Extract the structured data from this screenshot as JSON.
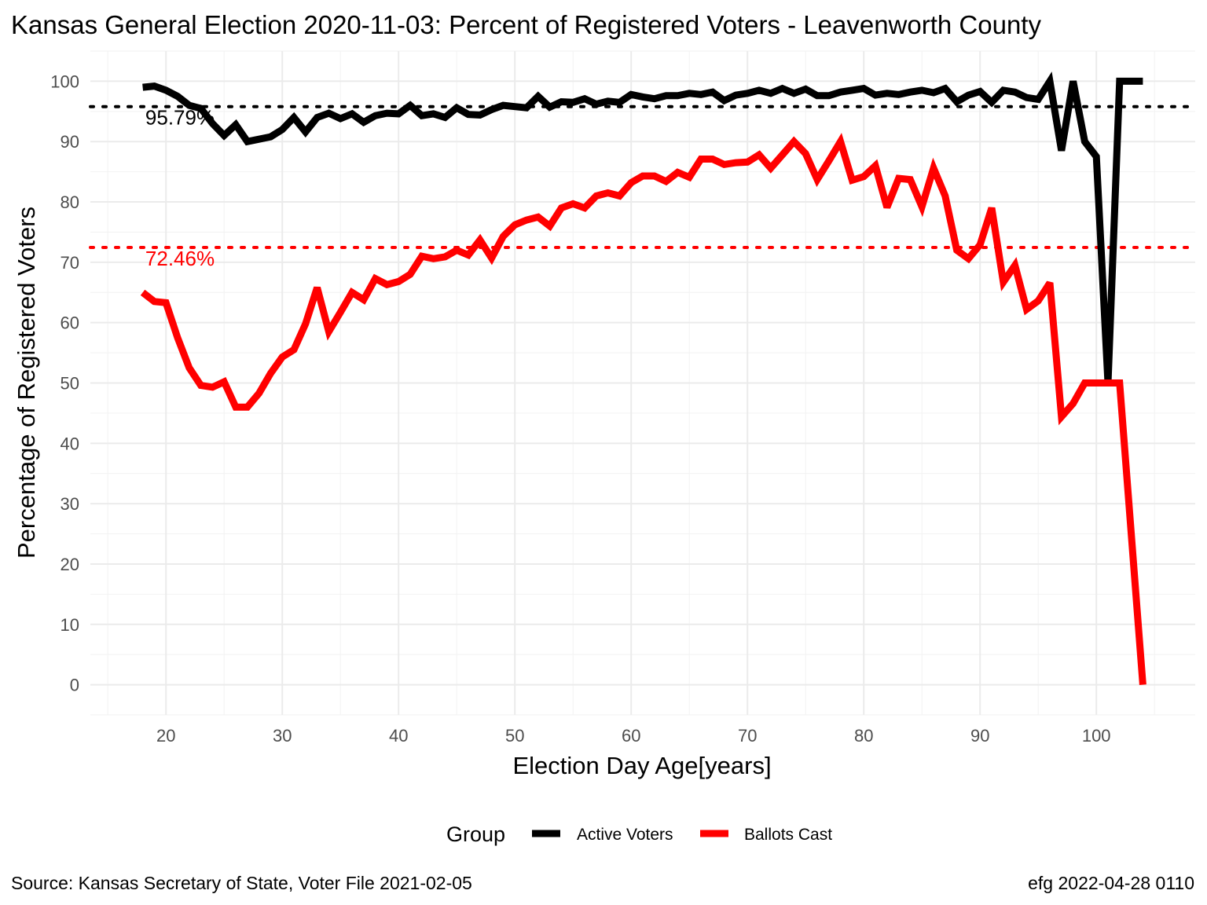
{
  "title": "Kansas General Election 2020-11-03:  Percent of Registered Voters - Leavenworth County",
  "caption_left": "Source:  Kansas Secretary of State, Voter File  2021-02-05",
  "caption_right": "efg 2022-04-28 0110",
  "chart_data": {
    "type": "line",
    "xlabel": "Election Day Age[years]",
    "ylabel": "Percentage of Registered Voters",
    "xlim": [
      13.5,
      108.5
    ],
    "ylim": [
      -5,
      105
    ],
    "x_ticks": [
      20,
      30,
      40,
      50,
      60,
      70,
      80,
      90,
      100
    ],
    "y_ticks": [
      0,
      10,
      20,
      30,
      40,
      50,
      60,
      70,
      80,
      90,
      100
    ],
    "grid": true,
    "legend": {
      "title": "Group",
      "position": "bottom",
      "entries": [
        {
          "label": "Active Voters",
          "color": "#000000"
        },
        {
          "label": "Ballots Cast",
          "color": "#ff0000"
        }
      ]
    },
    "reference_lines": [
      {
        "value": 95.79,
        "label": "95.79%",
        "color": "#000000",
        "style": "dotted"
      },
      {
        "value": 72.46,
        "label": "72.46%",
        "color": "#ff0000",
        "style": "dotted"
      }
    ],
    "x": [
      18,
      19,
      20,
      21,
      22,
      23,
      24,
      25,
      26,
      27,
      28,
      29,
      30,
      31,
      32,
      33,
      34,
      35,
      36,
      37,
      38,
      39,
      40,
      41,
      42,
      43,
      44,
      45,
      46,
      47,
      48,
      49,
      50,
      51,
      52,
      53,
      54,
      55,
      56,
      57,
      58,
      59,
      60,
      61,
      62,
      63,
      64,
      65,
      66,
      67,
      68,
      69,
      70,
      71,
      72,
      73,
      74,
      75,
      76,
      77,
      78,
      79,
      80,
      81,
      82,
      83,
      84,
      85,
      86,
      87,
      88,
      89,
      90,
      91,
      92,
      93,
      94,
      95,
      96,
      97,
      98,
      99,
      100,
      101,
      102,
      103,
      104
    ],
    "series": [
      {
        "name": "Active Voters",
        "color": "#000000",
        "values": [
          99.0,
          99.2,
          98.5,
          97.5,
          96.0,
          95.5,
          93.0,
          91.0,
          92.8,
          90.0,
          90.4,
          90.8,
          92.0,
          94.0,
          91.6,
          94.0,
          94.7,
          93.8,
          94.6,
          93.2,
          94.3,
          94.7,
          94.6,
          96.0,
          94.3,
          94.6,
          94.0,
          95.6,
          94.5,
          94.4,
          95.3,
          96.0,
          95.8,
          95.6,
          97.5,
          95.7,
          96.6,
          96.5,
          97.1,
          96.2,
          96.7,
          96.5,
          97.8,
          97.4,
          97.1,
          97.6,
          97.6,
          98.0,
          97.8,
          98.2,
          96.8,
          97.7,
          98.0,
          98.5,
          98.0,
          98.8,
          98.0,
          98.7,
          97.6,
          97.6,
          98.2,
          98.5,
          98.8,
          97.7,
          98.0,
          97.8,
          98.2,
          98.5,
          98.1,
          98.8,
          96.6,
          97.7,
          98.3,
          96.5,
          98.5,
          98.2,
          97.3,
          97.0,
          100.0,
          88.5,
          100.0,
          90.0,
          87.5,
          50.0,
          100.0,
          100.0,
          100.0
        ]
      },
      {
        "name": "Ballots Cast",
        "color": "#ff0000",
        "values": [
          65.0,
          63.5,
          63.3,
          57.5,
          52.5,
          49.6,
          49.3,
          50.2,
          46.0,
          46.0,
          48.3,
          51.6,
          54.3,
          55.5,
          59.8,
          65.8,
          58.5,
          61.7,
          65.0,
          63.8,
          67.3,
          66.3,
          66.8,
          68.0,
          71.0,
          70.6,
          70.9,
          72.0,
          71.2,
          73.7,
          70.7,
          74.3,
          76.2,
          77.0,
          77.5,
          76.0,
          79.0,
          79.7,
          79.0,
          81.0,
          81.5,
          81.0,
          83.2,
          84.3,
          84.3,
          83.4,
          84.9,
          84.1,
          87.1,
          87.1,
          86.2,
          86.5,
          86.6,
          87.8,
          85.6,
          87.8,
          90.0,
          88.0,
          83.7,
          86.8,
          90.0,
          83.6,
          84.2,
          86.0,
          79.1,
          83.9,
          83.7,
          79.2,
          85.6,
          81.0,
          72.0,
          70.6,
          72.9,
          79.0,
          66.7,
          69.5,
          62.2,
          63.6,
          66.6,
          44.4,
          46.6,
          50.0,
          50.0,
          50.0,
          50.0,
          25.0,
          0.0
        ]
      }
    ]
  }
}
